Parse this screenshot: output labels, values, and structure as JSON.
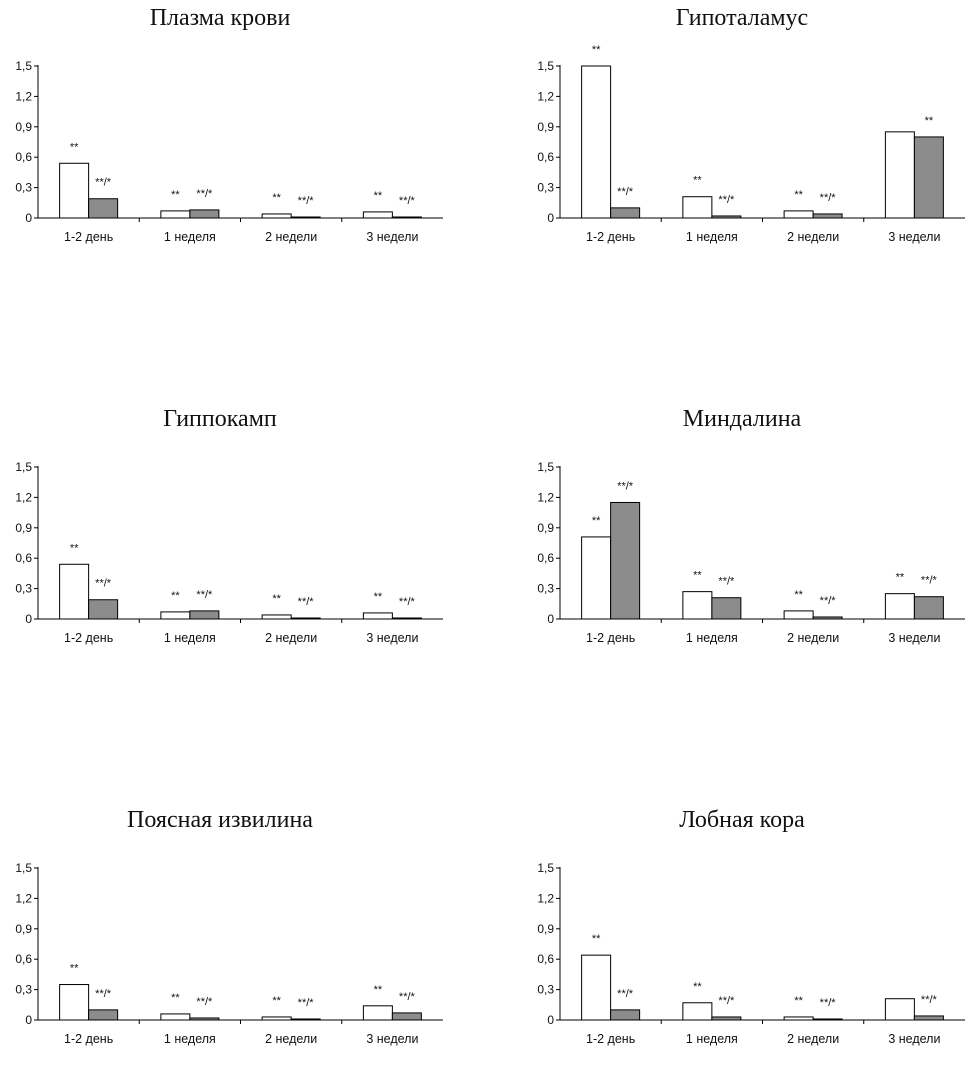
{
  "chart_data": [
    {
      "type": "bar",
      "title": "Плазма крови",
      "categories": [
        "1-2 день",
        "1 неделя",
        "2 недели",
        "3 недели"
      ],
      "ylim": [
        0,
        1.5
      ],
      "yticks": [
        "0",
        "0,3",
        "0,6",
        "0,9",
        "1,2",
        "1,5"
      ],
      "series": [
        {
          "color": "#ffffff",
          "values": [
            0.54,
            0.07,
            0.04,
            0.06
          ],
          "annotations": [
            "**",
            "**",
            "**",
            "**"
          ]
        },
        {
          "color": "#8c8c8c",
          "values": [
            0.19,
            0.08,
            0.01,
            0.01
          ],
          "annotations": [
            "**/*",
            "**/*",
            "**/*",
            "**/*"
          ]
        }
      ]
    },
    {
      "type": "bar",
      "title": "Гипоталамус",
      "categories": [
        "1-2 день",
        "1 неделя",
        "2 недели",
        "3 недели"
      ],
      "ylim": [
        0,
        1.5
      ],
      "yticks": [
        "0",
        "0,3",
        "0,6",
        "0,9",
        "1,2",
        "1,5"
      ],
      "series": [
        {
          "color": "#ffffff",
          "values": [
            1.5,
            0.21,
            0.07,
            0.85
          ],
          "annotations": [
            "**",
            "**",
            "**",
            ""
          ]
        },
        {
          "color": "#8c8c8c",
          "values": [
            0.1,
            0.02,
            0.04,
            0.8
          ],
          "annotations": [
            "**/*",
            "**/*",
            "**/*",
            "**"
          ]
        }
      ]
    },
    {
      "type": "bar",
      "title": "Гиппокамп",
      "categories": [
        "1-2 день",
        "1 неделя",
        "2 недели",
        "3 недели"
      ],
      "ylim": [
        0,
        1.5
      ],
      "yticks": [
        "0",
        "0,3",
        "0,6",
        "0,9",
        "1,2",
        "1,5"
      ],
      "series": [
        {
          "color": "#ffffff",
          "values": [
            0.54,
            0.07,
            0.04,
            0.06
          ],
          "annotations": [
            "**",
            "**",
            "**",
            "**"
          ]
        },
        {
          "color": "#8c8c8c",
          "values": [
            0.19,
            0.08,
            0.01,
            0.01
          ],
          "annotations": [
            "**/*",
            "**/*",
            "**/*",
            "**/*"
          ]
        }
      ]
    },
    {
      "type": "bar",
      "title": "Миндалина",
      "categories": [
        "1-2 день",
        "1 неделя",
        "2 недели",
        "3 недели"
      ],
      "ylim": [
        0,
        1.5
      ],
      "yticks": [
        "0",
        "0,3",
        "0,6",
        "0,9",
        "1,2",
        "1,5"
      ],
      "series": [
        {
          "color": "#ffffff",
          "values": [
            0.81,
            0.27,
            0.08,
            0.25
          ],
          "annotations": [
            "**",
            "**",
            "**",
            "**"
          ]
        },
        {
          "color": "#8c8c8c",
          "values": [
            1.15,
            0.21,
            0.02,
            0.22
          ],
          "annotations": [
            "**/*",
            "**/*",
            "**/*",
            "**/*"
          ]
        }
      ]
    },
    {
      "type": "bar",
      "title": "Поясная извилина",
      "categories": [
        "1-2 день",
        "1 неделя",
        "2 недели",
        "3 недели"
      ],
      "ylim": [
        0,
        1.5
      ],
      "yticks": [
        "0",
        "0,3",
        "0,6",
        "0,9",
        "1,2",
        "1,5"
      ],
      "series": [
        {
          "color": "#ffffff",
          "values": [
            0.35,
            0.06,
            0.03,
            0.14
          ],
          "annotations": [
            "**",
            "**",
            "**",
            "**"
          ]
        },
        {
          "color": "#8c8c8c",
          "values": [
            0.1,
            0.02,
            0.01,
            0.07
          ],
          "annotations": [
            "**/*",
            "**/*",
            "**/*",
            "**/*"
          ]
        }
      ]
    },
    {
      "type": "bar",
      "title": "Лобная кора",
      "categories": [
        "1-2 день",
        "1 неделя",
        "2 недели",
        "3 недели"
      ],
      "ylim": [
        0,
        1.5
      ],
      "yticks": [
        "0",
        "0,3",
        "0,6",
        "0,9",
        "1,2",
        "1,5"
      ],
      "series": [
        {
          "color": "#ffffff",
          "values": [
            0.64,
            0.17,
            0.03,
            0.21
          ],
          "annotations": [
            "**",
            "**",
            "**",
            ""
          ]
        },
        {
          "color": "#8c8c8c",
          "values": [
            0.1,
            0.03,
            0.01,
            0.04
          ],
          "annotations": [
            "**/*",
            "**/*",
            "**/*",
            "**/*"
          ]
        }
      ]
    }
  ]
}
